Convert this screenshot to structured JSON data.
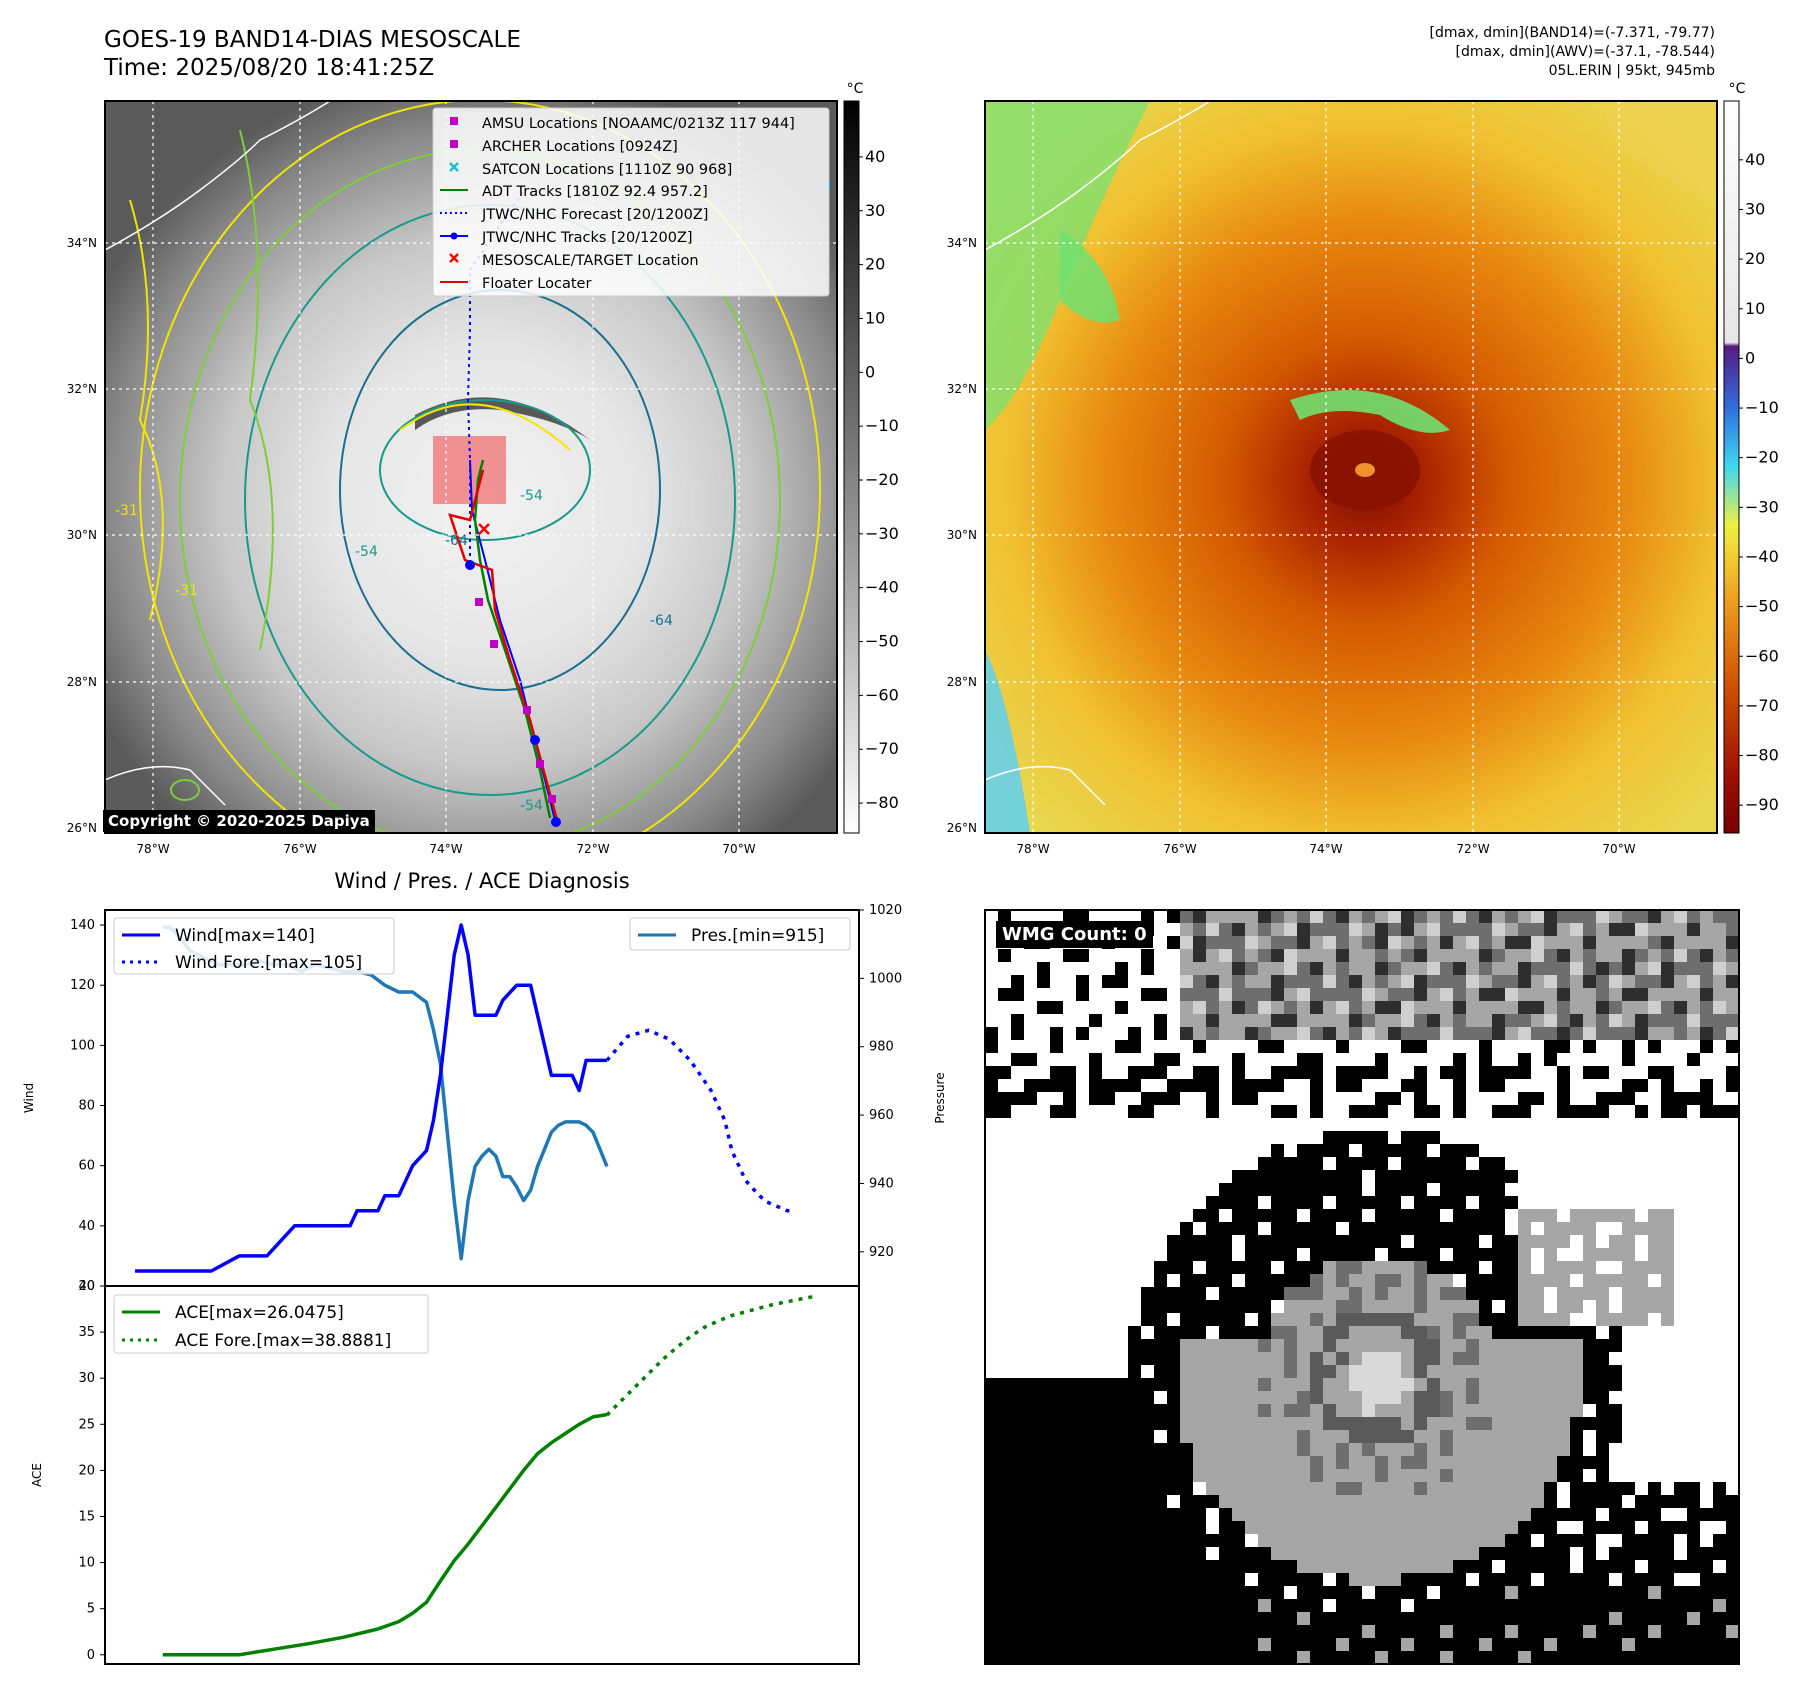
{
  "header": {
    "title_line1": "GOES-19 BAND14-DIAS MESOSCALE",
    "title_line2": "Time: 2025/08/20 18:41:25Z",
    "info_line1": "[dmax, dmin](BAND14)=(-7.371, -79.77)",
    "info_line2": "[dmax, dmin](AWV)=(-37.1, -78.544)",
    "info_line3": "05L.ERIN | 95kt, 945mb"
  },
  "colors": {
    "wind": "#0000ff",
    "pressure": "#1f77b4",
    "ace": "#008000",
    "amsu": "#c000c0",
    "satcon": "#17becf",
    "adt": "#008000",
    "jtwc": "#0000ff",
    "target": "#ff0000",
    "floater": "#e00000",
    "contour_yellow": "#f2e600",
    "contour_lightgreen": "#7ccf3a",
    "contour_teal": "#1a9a8a",
    "contour_darkteal": "#1a6f8f"
  },
  "map_left": {
    "colorbar_unit": "°C",
    "colorbar_ticks": [
      "40",
      "30",
      "20",
      "10",
      "0",
      "−10",
      "−20",
      "−30",
      "−40",
      "−50",
      "−60",
      "−70",
      "−80"
    ],
    "lat_labels": [
      "34°N",
      "32°N",
      "30°N",
      "28°N",
      "26°N"
    ],
    "lon_labels": [
      "78°W",
      "76°W",
      "74°W",
      "72°W",
      "70°W"
    ],
    "contour_labels": [
      "-31",
      "-54",
      "-64",
      "-64",
      "-31",
      "-54",
      "-54",
      "-64"
    ],
    "copyright": "Copyright © 2020-2025 Dapiya",
    "legend": [
      {
        "label": "AMSU Locations [NOAAMC/0213Z 117 944]",
        "marker": "square",
        "color": "#c000c0"
      },
      {
        "label": "ARCHER Locations [0924Z]",
        "marker": "square",
        "color": "#c000c0"
      },
      {
        "label": "SATCON Locations [1110Z 90 968]",
        "marker": "x",
        "color": "#17becf"
      },
      {
        "label": "ADT Tracks [1810Z 92.4 957.2]",
        "marker": "line",
        "color": "#008000"
      },
      {
        "label": "JTWC/NHC Forecast [20/1200Z]",
        "marker": "dotted",
        "color": "#0000ff"
      },
      {
        "label": "JTWC/NHC Tracks [20/1200Z]",
        "marker": "line-dot",
        "color": "#0000ff"
      },
      {
        "label": "MESOSCALE/TARGET Location",
        "marker": "x",
        "color": "#ff0000"
      },
      {
        "label": "Floater Locater",
        "marker": "line",
        "color": "#e00000"
      }
    ]
  },
  "map_right": {
    "colorbar_unit": "°C",
    "colorbar_ticks": [
      "40",
      "30",
      "20",
      "10",
      "0",
      "−10",
      "−20",
      "−30",
      "−40",
      "−50",
      "−60",
      "−70",
      "−80",
      "−90"
    ],
    "lat_labels": [
      "34°N",
      "32°N",
      "30°N",
      "28°N",
      "26°N"
    ],
    "lon_labels": [
      "78°W",
      "76°W",
      "74°W",
      "72°W",
      "70°W"
    ]
  },
  "wmg": {
    "badge": "WMG Count: 0"
  },
  "chart_data": [
    {
      "type": "line",
      "title": "Wind / Pres. / ACE Diagnosis",
      "ylabel": "Wind",
      "ylim": [
        20,
        145
      ],
      "yticks": [
        20,
        40,
        60,
        80,
        100,
        120,
        140
      ],
      "legend_left": [
        "Wind[max=140]",
        "Wind Fore.[max=105]"
      ],
      "legend_right": [
        "Pres.[min=915]"
      ],
      "xlim": [
        0,
        100
      ],
      "series": [
        {
          "name": "Wind[max=140]",
          "x": [
            0,
            10,
            11,
            15,
            16,
            17,
            19,
            23,
            24,
            25,
            28,
            31,
            32,
            33,
            35,
            36,
            38,
            39,
            40,
            42,
            43,
            44,
            45,
            46,
            47,
            48,
            49,
            50,
            51,
            52,
            53,
            55,
            57,
            59,
            60,
            61,
            63,
            64,
            65,
            66,
            67,
            68
          ],
          "y": [
            25,
            25,
            25,
            30,
            30,
            30,
            30,
            40,
            40,
            40,
            40,
            40,
            45,
            45,
            45,
            50,
            50,
            55,
            60,
            65,
            75,
            90,
            110,
            130,
            140,
            130,
            110,
            110,
            110,
            110,
            115,
            120,
            120,
            100,
            90,
            90,
            90,
            85,
            95,
            95,
            95,
            95
          ]
        },
        {
          "name": "Wind Fore.[max=105]",
          "x": [
            68,
            71,
            74,
            77,
            80,
            83,
            85,
            86,
            87,
            88,
            90,
            91,
            92,
            93,
            94,
            95
          ],
          "y": [
            95,
            103,
            105,
            102,
            95,
            85,
            75,
            65,
            60,
            55,
            50,
            48,
            47,
            46,
            45,
            45
          ]
        },
        {
          "name": "Pres.[min=915]",
          "axis": "right",
          "ylim": [
            910,
            1020
          ],
          "yticks": [
            920,
            940,
            960,
            980,
            1000,
            1020
          ],
          "ylabel": "Pressure",
          "x": [
            4,
            5,
            6,
            8,
            10,
            12,
            14,
            16,
            18,
            20,
            22,
            24,
            26,
            28,
            30,
            32,
            34,
            36,
            38,
            40,
            42,
            43,
            44,
            45,
            46,
            47,
            48,
            49,
            50,
            51,
            52,
            53,
            54,
            55,
            56,
            57,
            58,
            59,
            60,
            61,
            62,
            63,
            64,
            65,
            66,
            67,
            68
          ],
          "y": [
            1015,
            1015,
            1013,
            1008,
            1006,
            1004,
            1004,
            1004,
            1005,
            1004,
            1004,
            1002,
            1004,
            1003,
            1002,
            1002,
            1001,
            998,
            996,
            996,
            993,
            985,
            975,
            955,
            935,
            918,
            935,
            945,
            948,
            950,
            948,
            942,
            942,
            939,
            935,
            938,
            945,
            950,
            955,
            957,
            958,
            958,
            958,
            957,
            955,
            950,
            945
          ]
        }
      ]
    },
    {
      "type": "line",
      "ylabel": "ACE",
      "ylim": [
        -1,
        40
      ],
      "yticks": [
        0,
        5,
        10,
        15,
        20,
        25,
        30,
        35,
        40
      ],
      "xlim": [
        0,
        100
      ],
      "legend": [
        "ACE[max=26.0475]",
        "ACE Fore.[max=38.8881]"
      ],
      "series": [
        {
          "name": "ACE[max=26.0475]",
          "x": [
            4,
            10,
            15,
            20,
            25,
            30,
            35,
            38,
            40,
            42,
            44,
            46,
            48,
            50,
            52,
            54,
            56,
            58,
            60,
            62,
            64,
            66,
            68
          ],
          "y": [
            0,
            0,
            0,
            0.6,
            1.2,
            1.9,
            2.8,
            3.6,
            4.5,
            5.7,
            8.0,
            10.2,
            12.0,
            14.0,
            16.0,
            18.0,
            20.0,
            21.8,
            23.0,
            24.0,
            25.0,
            25.8,
            26.0475
          ]
        },
        {
          "name": "ACE Fore.[max=38.8881]",
          "x": [
            68,
            70,
            72,
            74,
            76,
            78,
            80,
            82,
            84,
            86,
            88,
            90,
            92,
            94,
            96,
            98
          ],
          "y": [
            26.0,
            27.5,
            29.0,
            30.5,
            32.0,
            33.3,
            34.5,
            35.5,
            36.2,
            36.8,
            37.2,
            37.6,
            38.0,
            38.3,
            38.6,
            38.8881
          ]
        }
      ]
    }
  ]
}
